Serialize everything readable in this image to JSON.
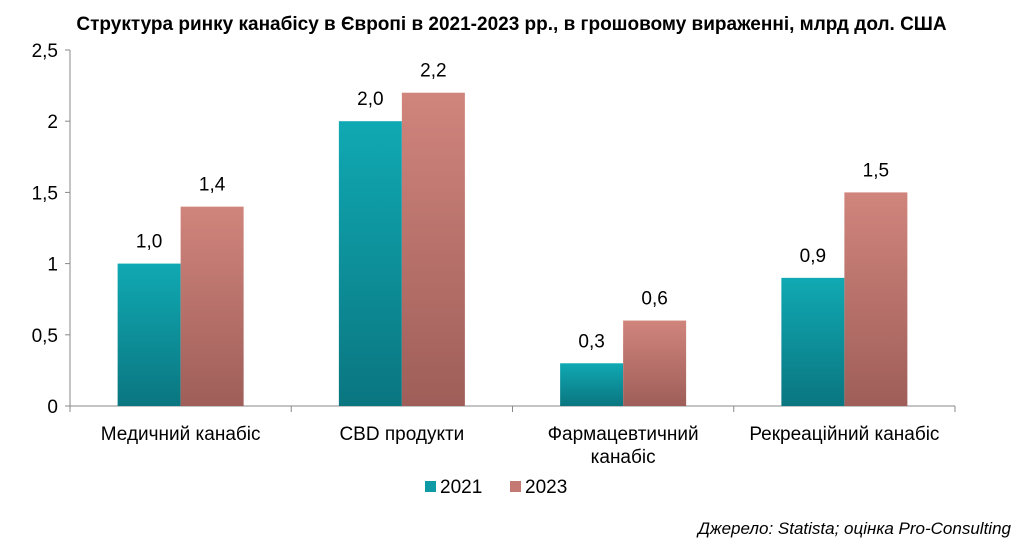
{
  "title": "Структура ринку канабісу в Європі в 2021-2023 рр., в грошовому вираженні, млрд дол. США",
  "source": "Джерело: Statista; оцінка Pro-Consulting",
  "colors": {
    "s2021": "#0e9ba6",
    "s2023": "#c47a72"
  },
  "chart_data": {
    "type": "bar",
    "categories": [
      [
        "Медичний канабіс"
      ],
      [
        "CBD продукти"
      ],
      [
        "Фармацевтичний",
        "канабіс"
      ],
      [
        "Рекреаційний канабіс"
      ]
    ],
    "series": [
      {
        "name": "2021",
        "values": [
          1.0,
          2.0,
          0.3,
          0.9
        ],
        "labels": [
          "1,0",
          "2,0",
          "0,3",
          "0,9"
        ]
      },
      {
        "name": "2023",
        "values": [
          1.4,
          2.2,
          0.6,
          1.5
        ],
        "labels": [
          "1,4",
          "2,2",
          "0,6",
          "1,5"
        ]
      }
    ],
    "yticks": [
      "0",
      "0,5",
      "1",
      "1,5",
      "2",
      "2,5"
    ],
    "ylim": [
      0,
      2.5
    ],
    "legend": "bottom"
  }
}
